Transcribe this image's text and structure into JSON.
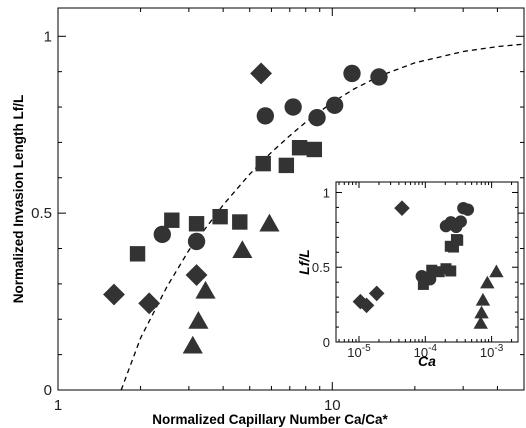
{
  "chart_data": [
    {
      "type": "scatter",
      "xlabel": "Normalized Capillary Number Ca/Ca*",
      "ylabel": "Normalized Invasion Length Lf/L",
      "xscale": "log",
      "xlim": [
        1,
        50
      ],
      "ylim": [
        0,
        1.08
      ],
      "xticks": [
        {
          "value": 1,
          "label": "1"
        },
        {
          "value": 10,
          "label": "10"
        }
      ],
      "yticks": [
        {
          "value": 0,
          "label": "0"
        },
        {
          "value": 0.5,
          "label": "0.5"
        },
        {
          "value": 1,
          "label": "1"
        }
      ],
      "grid": false,
      "legend": "none",
      "fit_curve": {
        "style": "dashed",
        "points": [
          [
            1.7,
            0
          ],
          [
            2.0,
            0.147
          ],
          [
            2.5,
            0.293
          ],
          [
            3,
            0.395
          ],
          [
            4,
            0.523
          ],
          [
            5,
            0.61
          ],
          [
            6,
            0.672
          ],
          [
            7,
            0.719
          ],
          [
            8,
            0.757
          ],
          [
            10,
            0.813
          ],
          [
            12,
            0.851
          ],
          [
            15,
            0.889
          ],
          [
            20,
            0.925
          ],
          [
            30,
            0.957
          ],
          [
            40,
            0.971
          ],
          [
            50,
            0.978
          ]
        ]
      },
      "series": [
        {
          "marker": "diamond",
          "points": [
            [
              1.6,
              0.27
            ],
            [
              2.15,
              0.245
            ],
            [
              3.2,
              0.325
            ],
            [
              5.5,
              0.895
            ]
          ]
        },
        {
          "marker": "circle",
          "points": [
            [
              2.4,
              0.44
            ],
            [
              3.2,
              0.42
            ],
            [
              5.7,
              0.775
            ],
            [
              7.2,
              0.8
            ],
            [
              8.8,
              0.77
            ],
            [
              10.2,
              0.805
            ],
            [
              11.8,
              0.895
            ],
            [
              14.8,
              0.885
            ]
          ]
        },
        {
          "marker": "square",
          "points": [
            [
              1.95,
              0.385
            ],
            [
              2.6,
              0.48
            ],
            [
              3.2,
              0.47
            ],
            [
              3.9,
              0.49
            ],
            [
              4.6,
              0.475
            ],
            [
              5.6,
              0.64
            ],
            [
              6.8,
              0.635
            ],
            [
              7.6,
              0.685
            ],
            [
              8.6,
              0.68
            ]
          ]
        },
        {
          "marker": "triangle",
          "points": [
            [
              3.1,
              0.125
            ],
            [
              3.25,
              0.195
            ],
            [
              3.45,
              0.28
            ],
            [
              4.7,
              0.395
            ],
            [
              5.9,
              0.47
            ]
          ]
        }
      ]
    },
    {
      "type": "scatter",
      "xlabel": "Ca",
      "ylabel": "Lf/L",
      "xscale": "log",
      "xlim": [
        4.5e-06,
        0.0025
      ],
      "ylim": [
        0,
        1.07
      ],
      "xticks": [
        {
          "value": 1e-05,
          "label": "10",
          "exp": "-5"
        },
        {
          "value": 0.0001,
          "label": "10",
          "exp": "-4"
        },
        {
          "value": 0.001,
          "label": "10",
          "exp": "-3"
        }
      ],
      "yticks": [
        {
          "value": 0,
          "label": "0"
        },
        {
          "value": 0.5,
          "label": "0.5"
        },
        {
          "value": 1,
          "label": "1"
        }
      ],
      "grid": false,
      "legend": "none",
      "series": [
        {
          "marker": "diamond",
          "points": [
            [
              1.05e-05,
              0.27
            ],
            [
              1.3e-05,
              0.245
            ],
            [
              1.85e-05,
              0.325
            ],
            [
              4.45e-05,
              0.895
            ]
          ]
        },
        {
          "marker": "circle",
          "points": [
            [
              8.85e-05,
              0.44
            ],
            [
              0.000118,
              0.42
            ],
            [
              0.000205,
              0.775
            ],
            [
              0.000243,
              0.8
            ],
            [
              0.000292,
              0.77
            ],
            [
              0.000342,
              0.805
            ],
            [
              0.000375,
              0.895
            ],
            [
              0.000438,
              0.885
            ]
          ]
        },
        {
          "marker": "square",
          "points": [
            [
              9.35e-05,
              0.385
            ],
            [
              0.000125,
              0.48
            ],
            [
              0.000162,
              0.47
            ],
            [
              0.000205,
              0.49
            ],
            [
              0.000242,
              0.475
            ],
            [
              0.000238,
              0.64
            ],
            [
              0.000266,
              0.635
            ],
            [
              0.000295,
              0.685
            ],
            [
              0.000308,
              0.68
            ]
          ]
        },
        {
          "marker": "triangle",
          "points": [
            [
              0.000685,
              0.125
            ],
            [
              0.000705,
              0.195
            ],
            [
              0.00074,
              0.28
            ],
            [
              0.000862,
              0.395
            ],
            [
              0.00118,
              0.47
            ]
          ]
        }
      ]
    }
  ]
}
